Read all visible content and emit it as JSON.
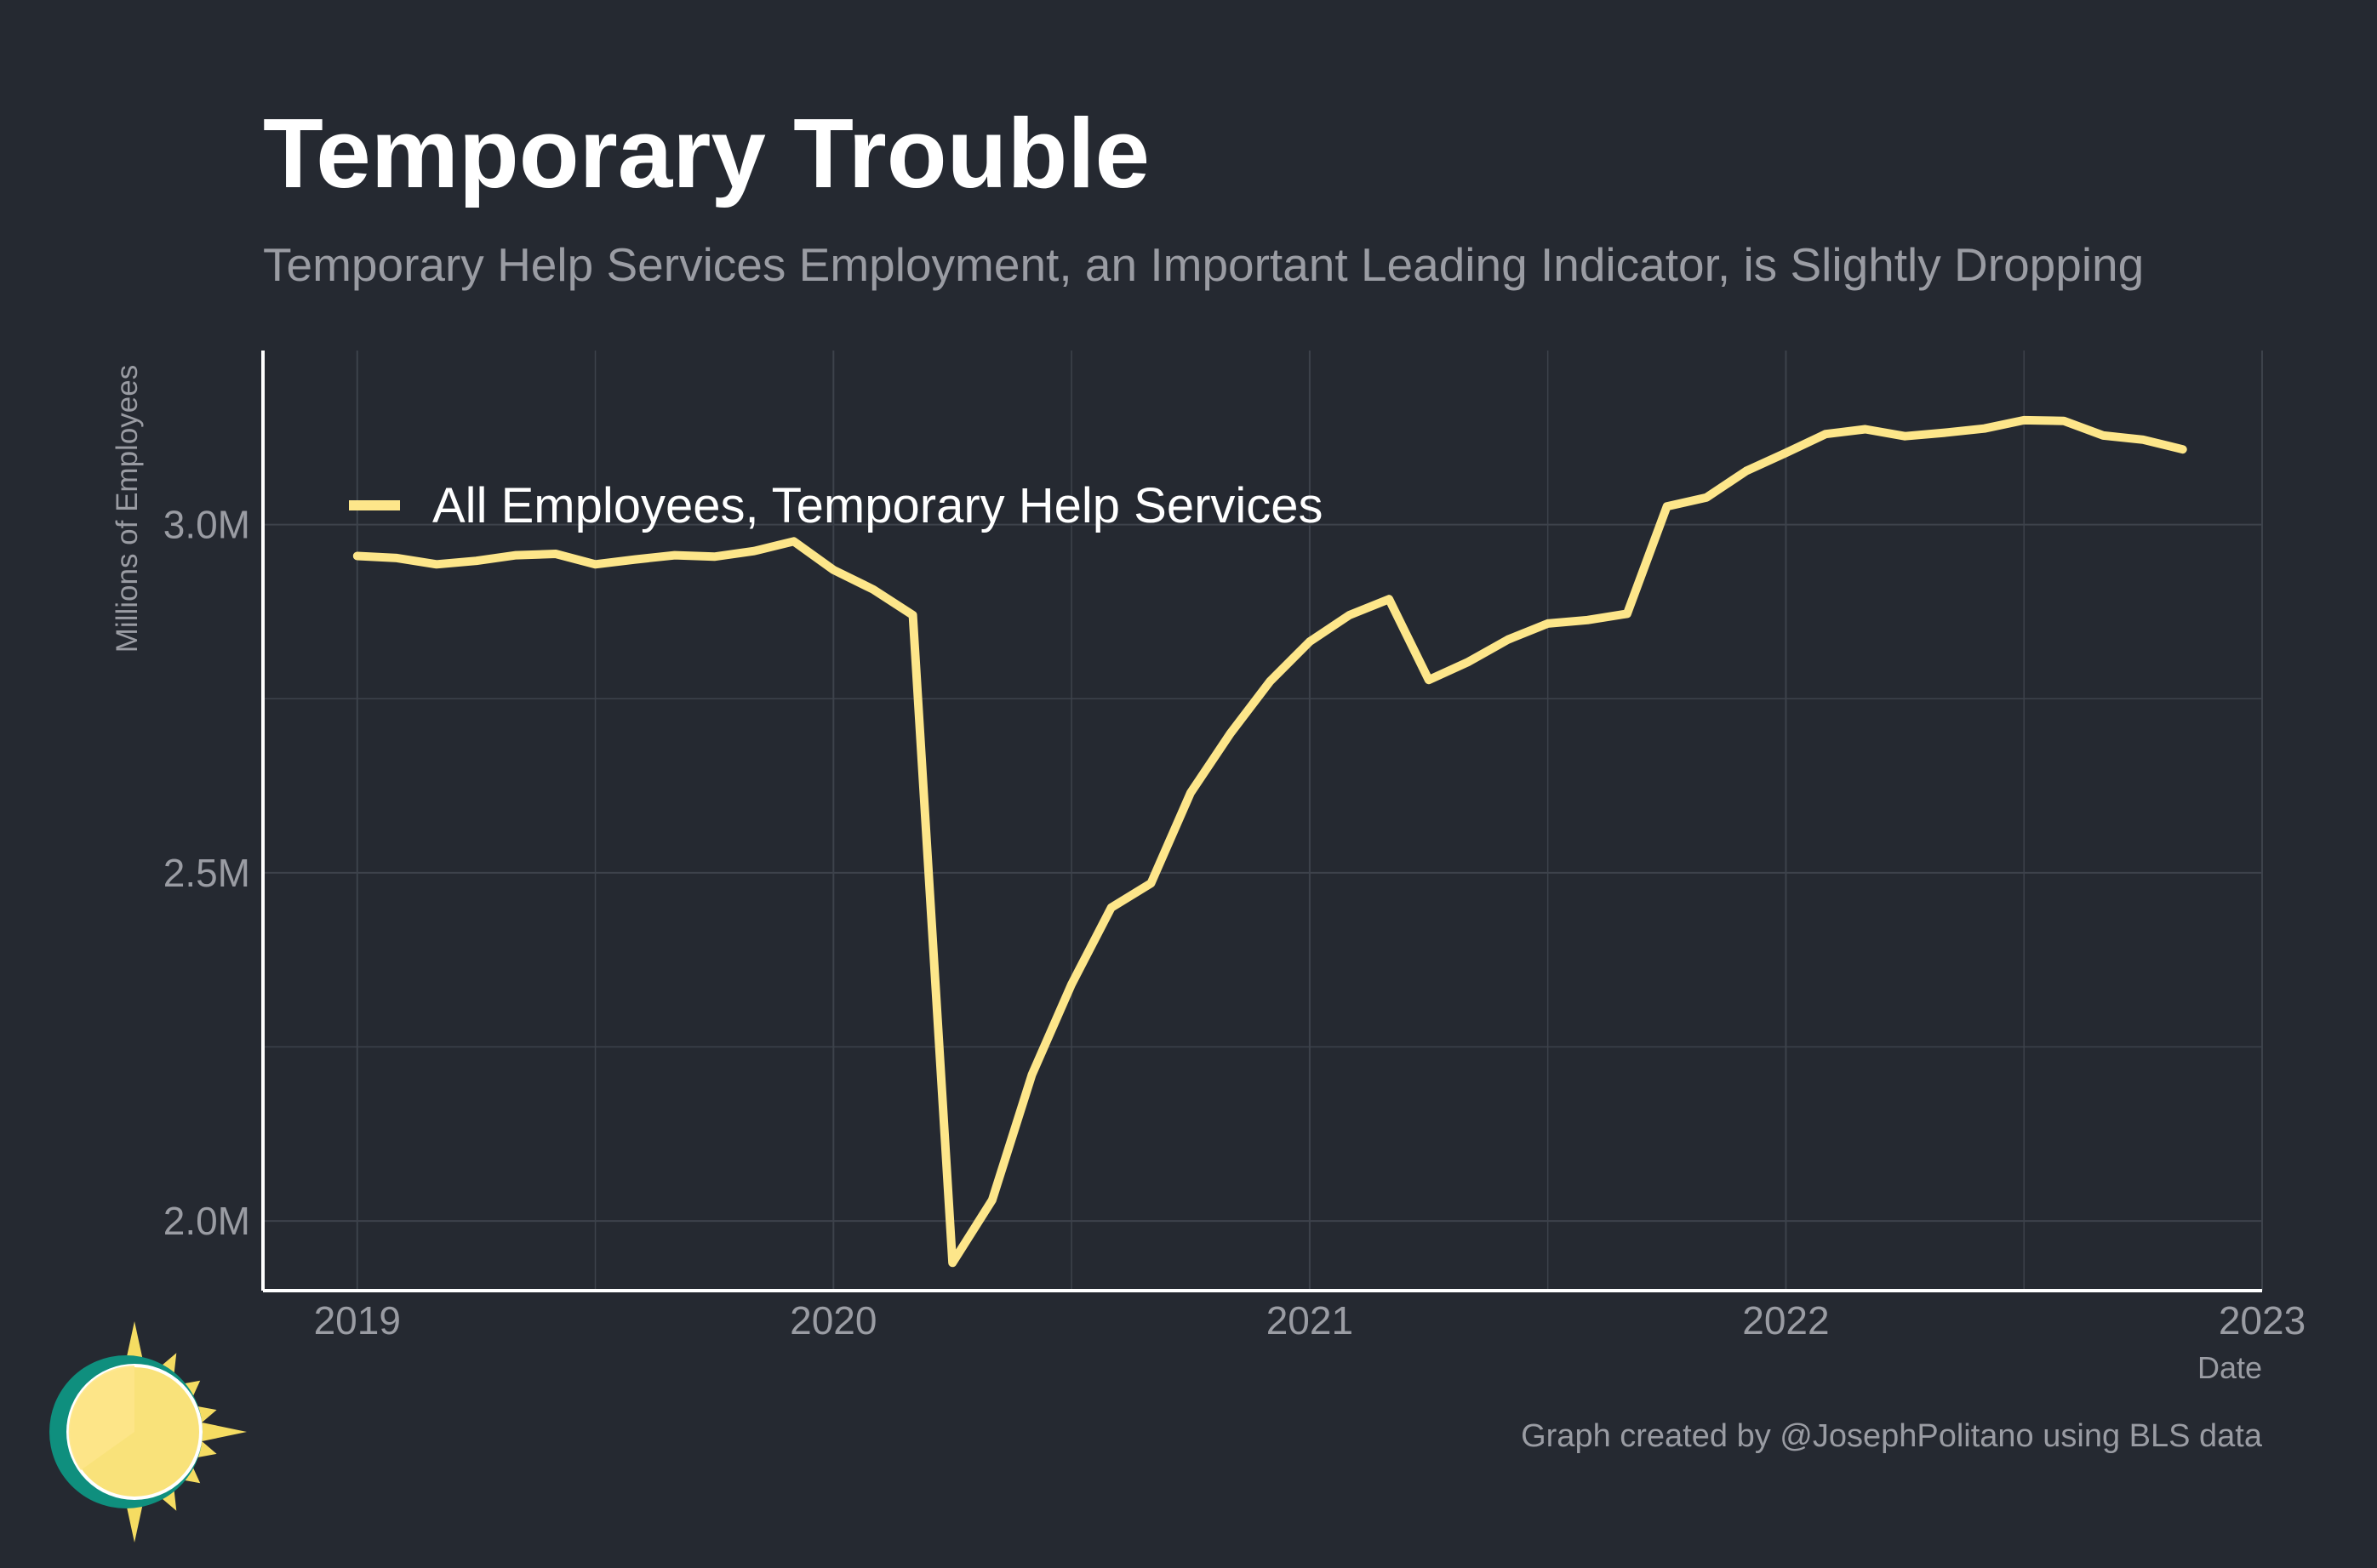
{
  "colors": {
    "background": "#252931",
    "line": "#fde68a",
    "grid": "#3d424b",
    "axis": "#ffffff",
    "text_muted": "#9a9ca3",
    "text_main": "#ffffff",
    "logo_ring": "#0f8f7e",
    "logo_sun": "#f9e27a",
    "logo_rays": "#f5dc62"
  },
  "chart_data": {
    "type": "line",
    "title": "Temporary Trouble",
    "subtitle": "Temporary Help Services Employment, an Important Leading Indicator, is Slightly Dropping",
    "ylabel": "Millions of Employees",
    "xlabel": "Date",
    "caption": "Graph created by @JosephPolitano using BLS data",
    "x_ticks": [
      "2019",
      "2020",
      "2021",
      "2022",
      "2023"
    ],
    "y_ticks": [
      {
        "value": 2.0,
        "label": "2.0M"
      },
      {
        "value": 2.5,
        "label": "2.5M"
      },
      {
        "value": 3.0,
        "label": "3.0M"
      }
    ],
    "xlim": [
      "2018-10-20",
      "2023-01-01"
    ],
    "ylim": [
      1.9,
      3.25
    ],
    "grid": true,
    "legend_position": "top-left",
    "series": [
      {
        "name": "All Employees, Temporary Help Services",
        "x": [
          "2019-01",
          "2019-02",
          "2019-03",
          "2019-04",
          "2019-05",
          "2019-06",
          "2019-07",
          "2019-08",
          "2019-09",
          "2019-10",
          "2019-11",
          "2019-12",
          "2020-01",
          "2020-02",
          "2020-03",
          "2020-04",
          "2020-05",
          "2020-06",
          "2020-07",
          "2020-08",
          "2020-09",
          "2020-10",
          "2020-11",
          "2020-12",
          "2021-01",
          "2021-02",
          "2021-03",
          "2021-04",
          "2021-05",
          "2021-06",
          "2021-07",
          "2021-08",
          "2021-09",
          "2021-10",
          "2021-11",
          "2021-12",
          "2022-01",
          "2022-02",
          "2022-03",
          "2022-04",
          "2022-05",
          "2022-06",
          "2022-07",
          "2022-08",
          "2022-09",
          "2022-10",
          "2022-11"
        ],
        "values": [
          2.955,
          2.952,
          2.943,
          2.948,
          2.956,
          2.958,
          2.943,
          2.95,
          2.956,
          2.954,
          2.962,
          2.976,
          2.935,
          2.907,
          2.87,
          1.94,
          2.03,
          2.21,
          2.34,
          2.45,
          2.485,
          2.615,
          2.7,
          2.775,
          2.832,
          2.87,
          2.893,
          2.777,
          2.803,
          2.835,
          2.858,
          2.863,
          2.872,
          3.026,
          3.039,
          3.077,
          3.103,
          3.13,
          3.137,
          3.127,
          3.132,
          3.138,
          3.15,
          3.149,
          3.128,
          3.122,
          3.108
        ]
      }
    ]
  }
}
